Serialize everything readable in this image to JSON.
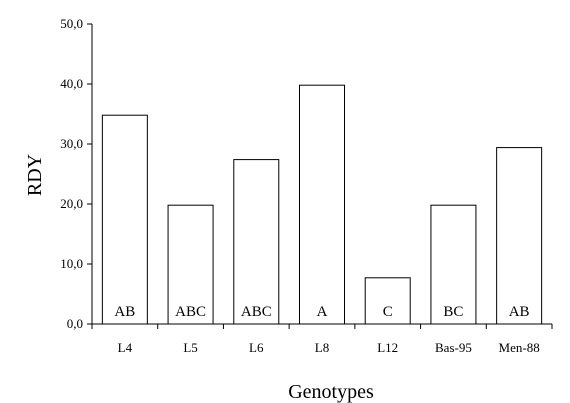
{
  "chart_data": {
    "type": "bar",
    "title": "",
    "xlabel": "Genotypes",
    "ylabel": "RDY",
    "categories": [
      "L4",
      "L5",
      "L6",
      "L8",
      "L12",
      "Bas-95",
      "Men-88"
    ],
    "values": [
      34.8,
      19.8,
      27.4,
      39.8,
      7.7,
      19.8,
      29.4
    ],
    "bar_labels": [
      "AB",
      "ABC",
      "ABC",
      "A",
      "C",
      "BC",
      "AB"
    ],
    "ylim": [
      0,
      50
    ],
    "yticks": [
      {
        "value": 0,
        "label": "0,0"
      },
      {
        "value": 10,
        "label": "10,0"
      },
      {
        "value": 20,
        "label": "20,0"
      },
      {
        "value": 30,
        "label": "30,0"
      },
      {
        "value": 40,
        "label": "40,0"
      },
      {
        "value": 50,
        "label": "50,0"
      }
    ],
    "grid": false,
    "legend": "none",
    "bar_fill": "#ffffff",
    "bar_stroke": "#000000"
  }
}
